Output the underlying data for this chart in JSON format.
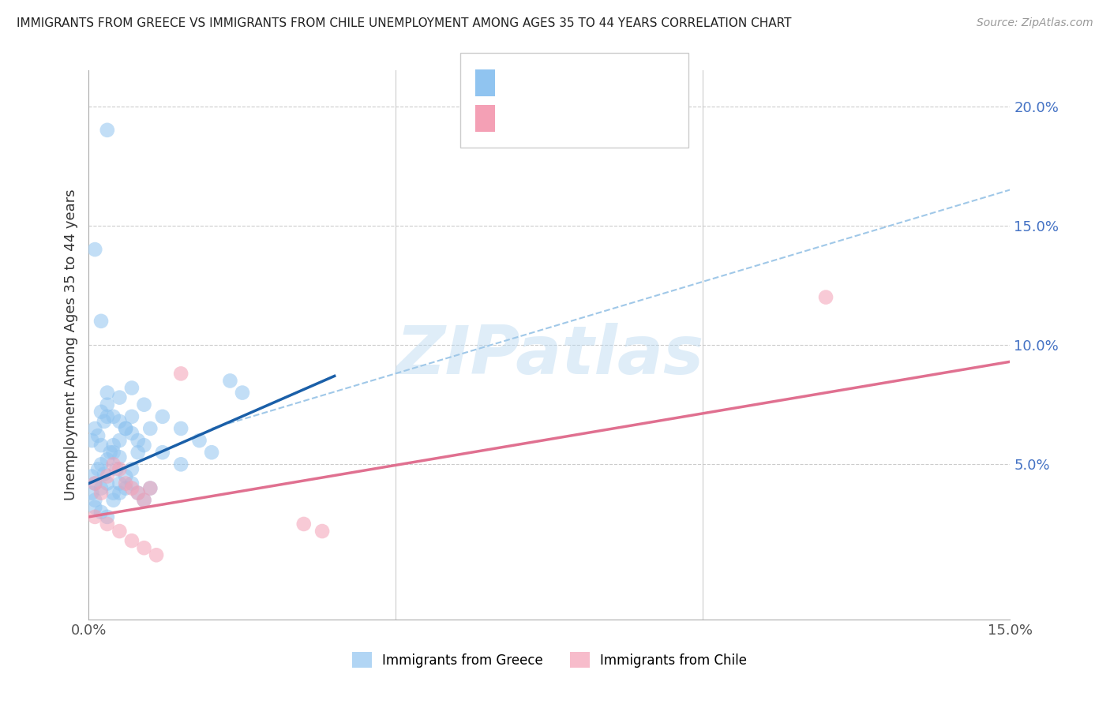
{
  "title": "IMMIGRANTS FROM GREECE VS IMMIGRANTS FROM CHILE UNEMPLOYMENT AMONG AGES 35 TO 44 YEARS CORRELATION CHART",
  "source": "Source: ZipAtlas.com",
  "ylabel": "Unemployment Among Ages 35 to 44 years",
  "xlim": [
    0.0,
    0.15
  ],
  "ylim": [
    -0.015,
    0.215
  ],
  "x_ticks": [
    0.0,
    0.05,
    0.1,
    0.15
  ],
  "x_tick_labels": [
    "0.0%",
    "",
    "",
    "15.0%"
  ],
  "y_ticks_right": [
    0.05,
    0.1,
    0.15,
    0.2
  ],
  "y_tick_labels_right": [
    "5.0%",
    "10.0%",
    "15.0%",
    "20.0%"
  ],
  "color_greece": "#90c4f0",
  "color_chile": "#f4a0b5",
  "color_line_greece": "#1a5fa8",
  "color_line_chile": "#e07090",
  "color_line_dashed": "#a0c8e8",
  "greece_line_x0": 0.0,
  "greece_line_y0": 0.042,
  "greece_line_x1": 0.04,
  "greece_line_y1": 0.087,
  "chile_line_x0": 0.0,
  "chile_line_y0": 0.028,
  "chile_line_x1": 0.15,
  "chile_line_y1": 0.093,
  "dashed_line_x0": 0.02,
  "dashed_line_y0": 0.065,
  "dashed_line_x1": 0.15,
  "dashed_line_y1": 0.165,
  "greece_scatter_x": [
    0.0005,
    0.001,
    0.0015,
    0.002,
    0.0025,
    0.003,
    0.0035,
    0.004,
    0.0045,
    0.005,
    0.0005,
    0.001,
    0.0015,
    0.002,
    0.0025,
    0.003,
    0.004,
    0.005,
    0.006,
    0.007,
    0.0005,
    0.001,
    0.002,
    0.003,
    0.004,
    0.005,
    0.006,
    0.007,
    0.008,
    0.009,
    0.001,
    0.002,
    0.003,
    0.004,
    0.005,
    0.006,
    0.007,
    0.008,
    0.009,
    0.01,
    0.002,
    0.003,
    0.004,
    0.005,
    0.006,
    0.007,
    0.008,
    0.01,
    0.012,
    0.015,
    0.003,
    0.005,
    0.007,
    0.009,
    0.012,
    0.015,
    0.018,
    0.02,
    0.023,
    0.025,
    0.003,
    0.001,
    0.002
  ],
  "greece_scatter_y": [
    0.045,
    0.042,
    0.048,
    0.05,
    0.046,
    0.052,
    0.055,
    0.058,
    0.048,
    0.053,
    0.06,
    0.065,
    0.062,
    0.058,
    0.068,
    0.07,
    0.055,
    0.06,
    0.065,
    0.07,
    0.038,
    0.035,
    0.04,
    0.042,
    0.038,
    0.042,
    0.045,
    0.048,
    0.055,
    0.058,
    0.032,
    0.03,
    0.028,
    0.035,
    0.038,
    0.04,
    0.042,
    0.038,
    0.035,
    0.04,
    0.072,
    0.075,
    0.07,
    0.068,
    0.065,
    0.063,
    0.06,
    0.065,
    0.055,
    0.05,
    0.08,
    0.078,
    0.082,
    0.075,
    0.07,
    0.065,
    0.06,
    0.055,
    0.085,
    0.08,
    0.19,
    0.14,
    0.11
  ],
  "chile_scatter_x": [
    0.001,
    0.002,
    0.003,
    0.004,
    0.005,
    0.006,
    0.007,
    0.008,
    0.009,
    0.01,
    0.001,
    0.003,
    0.005,
    0.007,
    0.009,
    0.011,
    0.035,
    0.038,
    0.12,
    0.015
  ],
  "chile_scatter_y": [
    0.042,
    0.038,
    0.045,
    0.05,
    0.048,
    0.042,
    0.04,
    0.038,
    0.035,
    0.04,
    0.028,
    0.025,
    0.022,
    0.018,
    0.015,
    0.012,
    0.025,
    0.022,
    0.12,
    0.088
  ]
}
